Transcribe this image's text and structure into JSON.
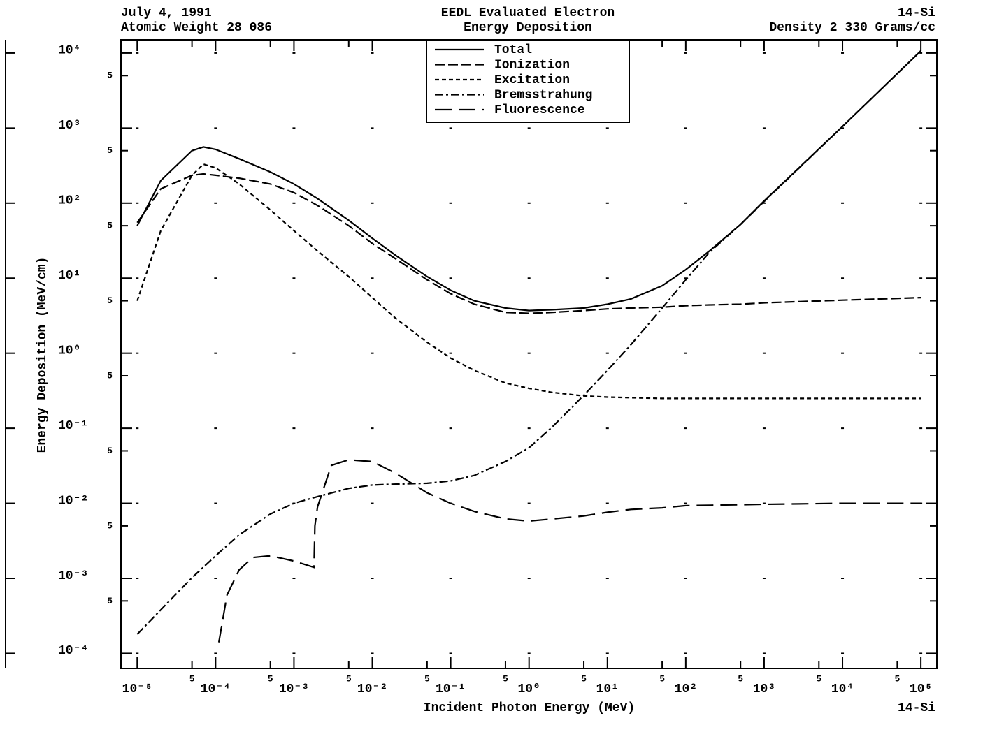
{
  "chart_data": {
    "type": "line",
    "header_left": [
      "July 4, 1991",
      "Atomic Weight 28 086"
    ],
    "title": [
      "EEDL Evaluated Electron",
      "Energy Deposition"
    ],
    "header_right": [
      "14-Si",
      "Density 2 330 Grams/cc"
    ],
    "footer_right": "14-Si",
    "x_label": "Incident Photon Energy (MeV)",
    "y_label": "Energy Deposition (MeV/cm)",
    "log_x": true,
    "log_y": true,
    "grid": "dots",
    "legend": "top",
    "xlim": [
      6.2e-06,
      160000
    ],
    "ylim": [
      6.3e-05,
      15000
    ],
    "xticks": [
      {
        "value": 1e-05,
        "label": "10⁻⁵"
      },
      {
        "value": 0.0001,
        "label": "10⁻⁴"
      },
      {
        "value": 0.001,
        "label": "10⁻³"
      },
      {
        "value": 0.01,
        "label": "10⁻²"
      },
      {
        "value": 0.1,
        "label": "10⁻¹"
      },
      {
        "value": 1,
        "label": "10⁰"
      },
      {
        "value": 10,
        "label": "10¹"
      },
      {
        "value": 100,
        "label": "10²"
      },
      {
        "value": 1000,
        "label": "10³"
      },
      {
        "value": 10000,
        "label": "10⁴"
      },
      {
        "value": 100000,
        "label": "10⁵"
      }
    ],
    "xminor_ticks": [
      {
        "value": 5e-05,
        "label": "5"
      },
      {
        "value": 0.0005,
        "label": "5"
      },
      {
        "value": 0.005,
        "label": "5"
      },
      {
        "value": 0.05,
        "label": "5"
      },
      {
        "value": 0.5,
        "label": "5"
      },
      {
        "value": 5,
        "label": "5"
      },
      {
        "value": 50,
        "label": "5"
      },
      {
        "value": 500,
        "label": "5"
      },
      {
        "value": 5000,
        "label": "5"
      },
      {
        "value": 50000,
        "label": "5"
      }
    ],
    "yticks": [
      {
        "value": 0.0001,
        "label": "10⁻⁴"
      },
      {
        "value": 0.001,
        "label": "10⁻³"
      },
      {
        "value": 0.01,
        "label": "10⁻²"
      },
      {
        "value": 0.1,
        "label": "10⁻¹"
      },
      {
        "value": 1,
        "label": "10⁰"
      },
      {
        "value": 10,
        "label": "10¹"
      },
      {
        "value": 100,
        "label": "10²"
      },
      {
        "value": 1000,
        "label": "10³"
      },
      {
        "value": 10000,
        "label": "10⁴"
      }
    ],
    "yminor_ticks": [
      {
        "value": 0.0005,
        "label": "5"
      },
      {
        "value": 0.005,
        "label": "5"
      },
      {
        "value": 0.05,
        "label": "5"
      },
      {
        "value": 0.5,
        "label": "5"
      },
      {
        "value": 5,
        "label": "5"
      },
      {
        "value": 50,
        "label": "5"
      },
      {
        "value": 500,
        "label": "5"
      },
      {
        "value": 5000,
        "label": "5"
      }
    ],
    "series": [
      {
        "name": "Total",
        "color": "#000000",
        "dash": "none",
        "x": [
          1e-05,
          2e-05,
          5e-05,
          7e-05,
          0.0001,
          0.0002,
          0.0005,
          0.001,
          0.002,
          0.005,
          0.01,
          0.02,
          0.05,
          0.1,
          0.2,
          0.5,
          1,
          2,
          5,
          10,
          20,
          50,
          100,
          200,
          500,
          1000,
          10000,
          100000
        ],
        "values": [
          50,
          200,
          500,
          560,
          520,
          390,
          260,
          180,
          115,
          59,
          34,
          20,
          10.5,
          6.9,
          5.0,
          4.0,
          3.7,
          3.8,
          4.0,
          4.5,
          5.3,
          7.9,
          13,
          23,
          52,
          107,
          1050,
          10700
        ]
      },
      {
        "name": "Ionization",
        "color": "#000000",
        "dash": "14,5",
        "x": [
          1e-05,
          2e-05,
          5e-05,
          7e-05,
          0.0001,
          0.0002,
          0.0005,
          0.001,
          0.002,
          0.005,
          0.01,
          0.02,
          0.05,
          0.1,
          0.2,
          0.5,
          1,
          2,
          5,
          10,
          20,
          50,
          100,
          200,
          500,
          1000,
          10000,
          100000
        ],
        "values": [
          55,
          155,
          235,
          245,
          235,
          215,
          180,
          138,
          93,
          50,
          29,
          18,
          9.5,
          6.2,
          4.5,
          3.5,
          3.4,
          3.5,
          3.7,
          3.9,
          4.0,
          4.1,
          4.3,
          4.4,
          4.5,
          4.7,
          5.1,
          5.5
        ]
      },
      {
        "name": "Excitation",
        "color": "#000000",
        "dash": "6,4",
        "x": [
          1e-05,
          2e-05,
          5e-05,
          7e-05,
          0.0001,
          0.0002,
          0.0005,
          0.001,
          0.002,
          0.005,
          0.01,
          0.02,
          0.05,
          0.1,
          0.2,
          0.5,
          1,
          2,
          5,
          10,
          50,
          1000,
          100000
        ],
        "values": [
          5.0,
          43,
          235,
          330,
          295,
          180,
          81,
          43,
          23,
          10.5,
          5.5,
          2.9,
          1.4,
          0.86,
          0.59,
          0.4,
          0.34,
          0.3,
          0.27,
          0.26,
          0.25,
          0.25,
          0.25
        ]
      },
      {
        "name": "Bremsstrahung",
        "color": "#000000",
        "dash": "12,4,3,4",
        "x": [
          1e-05,
          2e-05,
          5e-05,
          0.0001,
          0.0002,
          0.0005,
          0.001,
          0.002,
          0.005,
          0.01,
          0.02,
          0.05,
          0.1,
          0.2,
          0.5,
          1,
          2,
          5,
          10,
          20,
          50,
          100,
          200,
          500,
          1000,
          10000,
          100000
        ],
        "values": [
          0.00018,
          0.00038,
          0.00102,
          0.002,
          0.0038,
          0.0072,
          0.01,
          0.0123,
          0.0158,
          0.0175,
          0.018,
          0.0185,
          0.0199,
          0.0235,
          0.036,
          0.055,
          0.105,
          0.275,
          0.59,
          1.3,
          4.0,
          9.5,
          22,
          52,
          105,
          1050,
          10700
        ]
      },
      {
        "name": "Fluorescence",
        "color": "#000000",
        "dash": "24,10",
        "x": [
          0.00011,
          0.00014,
          0.0002,
          0.0003,
          0.0005,
          0.001,
          0.0018,
          0.00185,
          0.002,
          0.003,
          0.005,
          0.01,
          0.02,
          0.05,
          0.1,
          0.2,
          0.5,
          1,
          2,
          5,
          10,
          20,
          50,
          100,
          1000,
          10000,
          100000
        ],
        "values": [
          0.00014,
          0.0006,
          0.0013,
          0.0019,
          0.002,
          0.0017,
          0.0014,
          0.005,
          0.009,
          0.032,
          0.038,
          0.036,
          0.025,
          0.0138,
          0.01,
          0.0078,
          0.0062,
          0.0058,
          0.0062,
          0.0068,
          0.0076,
          0.0083,
          0.0087,
          0.0093,
          0.0097,
          0.01,
          0.01
        ]
      }
    ]
  }
}
